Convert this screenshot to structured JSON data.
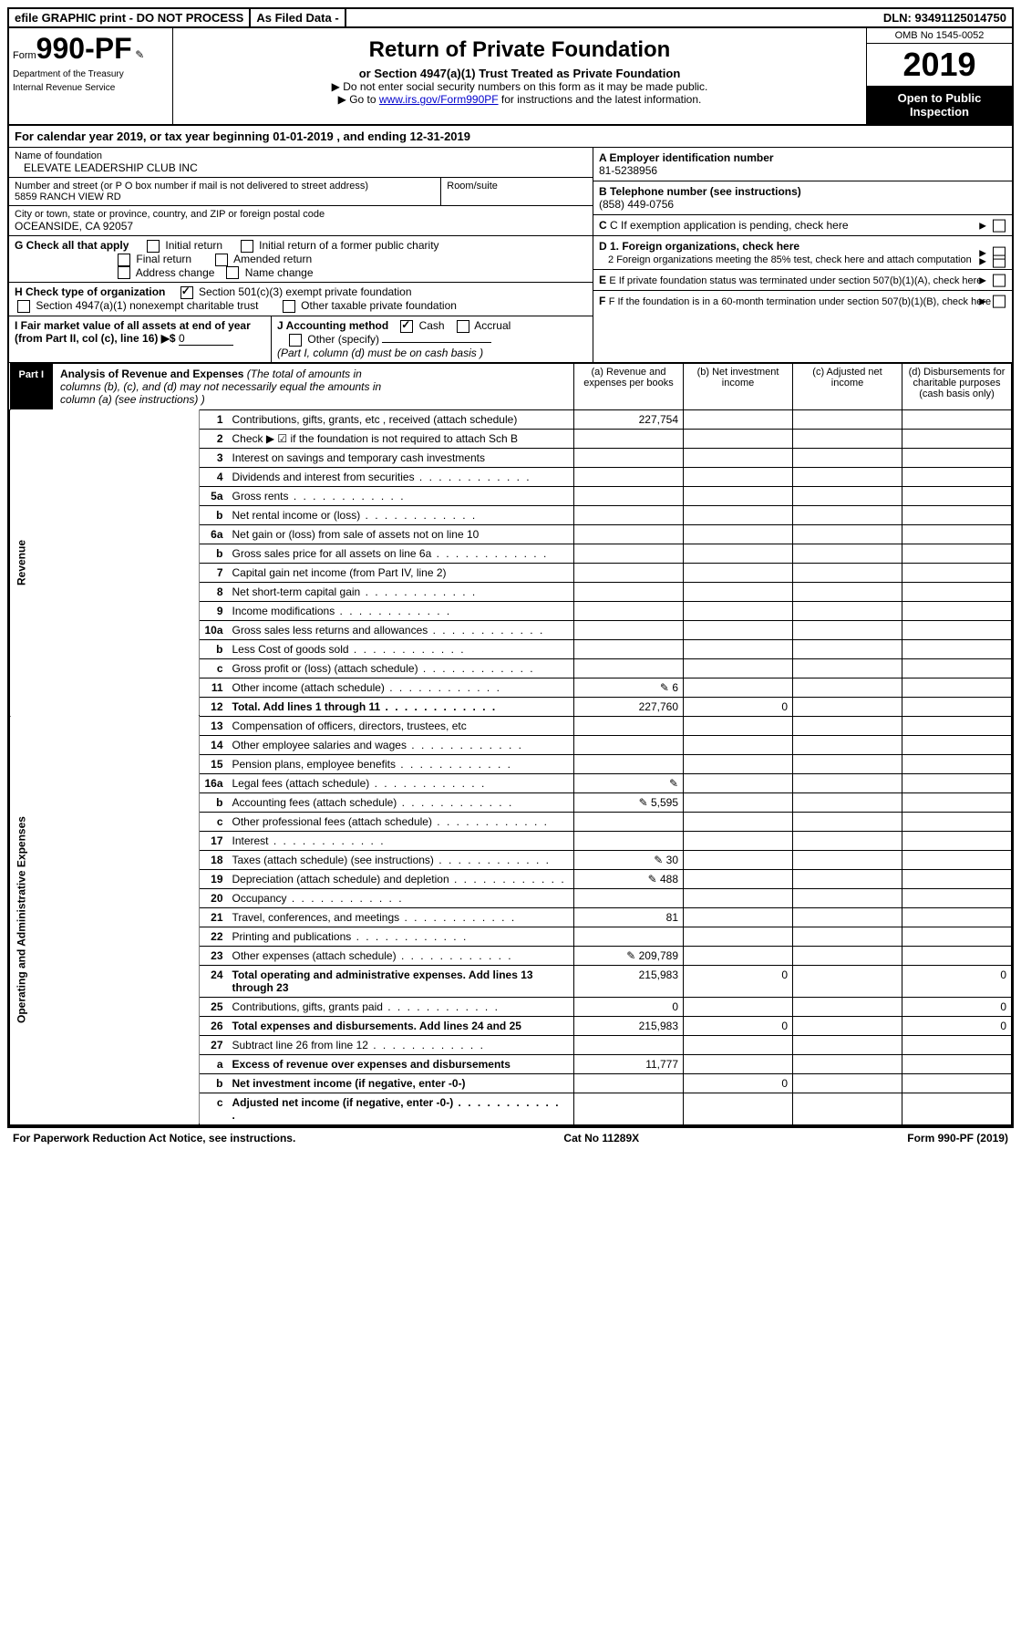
{
  "topbar": {
    "efile": "efile GRAPHIC print - DO NOT PROCESS",
    "asfiled": "As Filed Data -",
    "dln_label": "DLN:",
    "dln": "93491125014750"
  },
  "header": {
    "form_prefix": "Form",
    "form_no": "990-PF",
    "dept1": "Department of the Treasury",
    "dept2": "Internal Revenue Service",
    "title": "Return of Private Foundation",
    "subtitle": "or Section 4947(a)(1) Trust Treated as Private Foundation",
    "instr1": "▶ Do not enter social security numbers on this form as it may be made public.",
    "instr2_pre": "▶ Go to ",
    "instr2_link": "www.irs.gov/Form990PF",
    "instr2_post": " for instructions and the latest information.",
    "omb": "OMB No 1545-0052",
    "year": "2019",
    "inspect": "Open to Public Inspection"
  },
  "calyear": "For calendar year 2019, or tax year beginning 01-01-2019               , and ending 12-31-2019",
  "left": {
    "name_lbl": "Name of foundation",
    "name": "ELEVATE LEADERSHIP CLUB INC",
    "addr_lbl": "Number and street (or P O  box number if mail is not delivered to street address)",
    "room_lbl": "Room/suite",
    "addr": "5859 RANCH VIEW RD",
    "city_lbl": "City or town, state or province, country, and ZIP or foreign postal code",
    "city": "OCEANSIDE, CA  92057",
    "g_lbl": "G Check all that apply",
    "g_opts": [
      "Initial return",
      "Initial return of a former public charity",
      "Final return",
      "Amended return",
      "Address change",
      "Name change"
    ],
    "h_lbl": "H Check type of organization",
    "h_opt1": "Section 501(c)(3) exempt private foundation",
    "h_opt2": "Section 4947(a)(1) nonexempt charitable trust",
    "h_opt3": "Other taxable private foundation",
    "i_lbl": "I Fair market value of all assets at end of year (from Part II, col  (c), line 16) ▶$",
    "i_val": "0",
    "j_lbl": "J Accounting method",
    "j_cash": "Cash",
    "j_accrual": "Accrual",
    "j_other": "Other (specify)",
    "j_note": "(Part I, column (d) must be on cash basis )"
  },
  "right": {
    "a_lbl": "A Employer identification number",
    "a_val": "81-5238956",
    "b_lbl": "B Telephone number (see instructions)",
    "b_val": "(858) 449-0756",
    "c_lbl": "C If exemption application is pending, check here",
    "d1_lbl": "D 1. Foreign organizations, check here",
    "d2_lbl": "2  Foreign organizations meeting the 85% test, check here and attach computation",
    "e_lbl": "E  If private foundation status was terminated under section 507(b)(1)(A), check here",
    "f_lbl": "F  If the foundation is in a 60-month termination under section 507(b)(1)(B), check here"
  },
  "part1": {
    "label": "Part I",
    "title_bold": "Analysis of Revenue and Expenses",
    "title_rest": " (The total of amounts in columns (b), (c), and (d) may not necessarily equal the amounts in column (a) (see instructions) )",
    "cols": {
      "a": "(a)   Revenue and expenses per books",
      "b": "(b)  Net investment income",
      "c": "(c)  Adjusted net income",
      "d": "(d)  Disbursements for charitable purposes (cash basis only)"
    }
  },
  "vert": {
    "rev": "Revenue",
    "exp": "Operating and Administrative Expenses"
  },
  "rows": [
    {
      "n": "1",
      "d": "Contributions, gifts, grants, etc , received (attach schedule)",
      "a": "227,754"
    },
    {
      "n": "2",
      "d": "Check ▶ ☑ if the foundation is not required to attach Sch  B"
    },
    {
      "n": "3",
      "d": "Interest on savings and temporary cash investments"
    },
    {
      "n": "4",
      "d": "Dividends and interest from securities"
    },
    {
      "n": "5a",
      "d": "Gross rents"
    },
    {
      "n": "b",
      "d": "Net rental income or (loss)"
    },
    {
      "n": "6a",
      "d": "Net gain or (loss) from sale of assets not on line 10"
    },
    {
      "n": "b",
      "d": "Gross sales price for all assets on line 6a"
    },
    {
      "n": "7",
      "d": "Capital gain net income (from Part IV, line 2)"
    },
    {
      "n": "8",
      "d": "Net short-term capital gain"
    },
    {
      "n": "9",
      "d": "Income modifications"
    },
    {
      "n": "10a",
      "d": "Gross sales less returns and allowances"
    },
    {
      "n": "b",
      "d": "Less  Cost of goods sold"
    },
    {
      "n": "c",
      "d": "Gross profit or (loss) (attach schedule)"
    },
    {
      "n": "11",
      "d": "Other income (attach schedule)",
      "icon": true,
      "a": "6"
    },
    {
      "n": "12",
      "d": "Total. Add lines 1 through 11",
      "bold": true,
      "a": "227,760",
      "b": "0"
    },
    {
      "n": "13",
      "d": "Compensation of officers, directors, trustees, etc"
    },
    {
      "n": "14",
      "d": "Other employee salaries and wages"
    },
    {
      "n": "15",
      "d": "Pension plans, employee benefits"
    },
    {
      "n": "16a",
      "d": "Legal fees (attach schedule)",
      "icon": true
    },
    {
      "n": "b",
      "d": "Accounting fees (attach schedule)",
      "icon": true,
      "a": "5,595"
    },
    {
      "n": "c",
      "d": "Other professional fees (attach schedule)"
    },
    {
      "n": "17",
      "d": "Interest"
    },
    {
      "n": "18",
      "d": "Taxes (attach schedule) (see instructions)",
      "icon": true,
      "a": "30"
    },
    {
      "n": "19",
      "d": "Depreciation (attach schedule) and depletion",
      "icon": true,
      "a": "488"
    },
    {
      "n": "20",
      "d": "Occupancy"
    },
    {
      "n": "21",
      "d": "Travel, conferences, and meetings",
      "a": "81"
    },
    {
      "n": "22",
      "d": "Printing and publications"
    },
    {
      "n": "23",
      "d": "Other expenses (attach schedule)",
      "icon": true,
      "a": "209,789"
    },
    {
      "n": "24",
      "d": "Total operating and administrative expenses. Add lines 13 through 23",
      "bold": true,
      "a": "215,983",
      "b": "0",
      "dcol": "0"
    },
    {
      "n": "25",
      "d": "Contributions, gifts, grants paid",
      "a": "0",
      "dcol": "0"
    },
    {
      "n": "26",
      "d": "Total expenses and disbursements. Add lines 24 and 25",
      "bold": true,
      "a": "215,983",
      "b": "0",
      "dcol": "0"
    },
    {
      "n": "27",
      "d": "Subtract line 26 from line 12"
    },
    {
      "n": "a",
      "d": "Excess of revenue over expenses and disbursements",
      "bold": true,
      "a": "11,777"
    },
    {
      "n": "b",
      "d": "Net investment income (if negative, enter -0-)",
      "bold": true,
      "b": "0"
    },
    {
      "n": "c",
      "d": "Adjusted net income (if negative, enter -0-)",
      "bold": true
    }
  ],
  "footer": {
    "left": "For Paperwork Reduction Act Notice, see instructions.",
    "center": "Cat  No  11289X",
    "right": "Form 990-PF (2019)"
  }
}
